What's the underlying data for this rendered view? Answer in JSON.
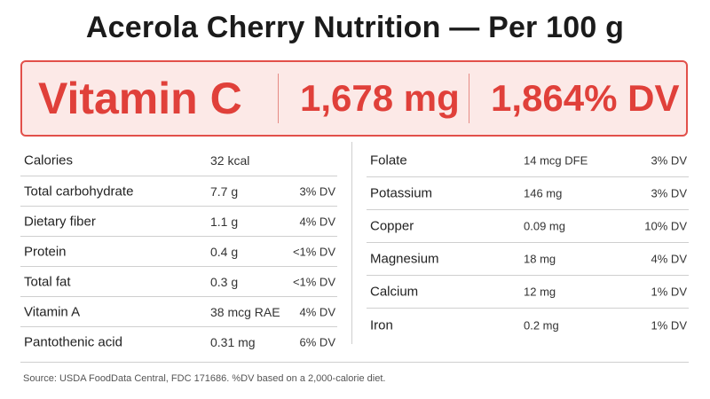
{
  "title": "Acerola Cherry Nutrition — Per 100 g",
  "highlight": {
    "nutrient": "Vitamin C",
    "amount": "1,678 mg",
    "dv": "1,864% DV",
    "accent_color": "#e0403a",
    "background_color": "#fce9e7"
  },
  "left_table": [
    {
      "name": "Calories",
      "amount": "32 kcal",
      "dv": ""
    },
    {
      "name": "Total carbohydrate",
      "amount": "7.7 g",
      "dv": "3% DV"
    },
    {
      "name": "Dietary fiber",
      "amount": "1.1 g",
      "dv": "4% DV"
    },
    {
      "name": "Protein",
      "amount": "0.4 g",
      "dv": "<1% DV"
    },
    {
      "name": "Total fat",
      "amount": "0.3 g",
      "dv": "<1% DV"
    },
    {
      "name": "Vitamin A",
      "amount": "38 mcg RAE",
      "dv": "4% DV"
    },
    {
      "name": "Pantothenic acid",
      "amount": "0.31 mg",
      "dv": "6% DV"
    }
  ],
  "right_table": [
    {
      "name": "Folate",
      "amount": "14 mcg DFE",
      "dv": "3% DV"
    },
    {
      "name": "Potassium",
      "amount": "146 mg",
      "dv": "3% DV"
    },
    {
      "name": "Copper",
      "amount": "0.09 mg",
      "dv": "10% DV"
    },
    {
      "name": "Magnesium",
      "amount": "18 mg",
      "dv": "4% DV"
    },
    {
      "name": "Calcium",
      "amount": "12 mg",
      "dv": "1% DV"
    },
    {
      "name": "Iron",
      "amount": "0.2 mg",
      "dv": "1% DV"
    }
  ],
  "source": "Source: USDA FoodData Central, FDC 171686. %DV based on a 2,000-calorie diet."
}
